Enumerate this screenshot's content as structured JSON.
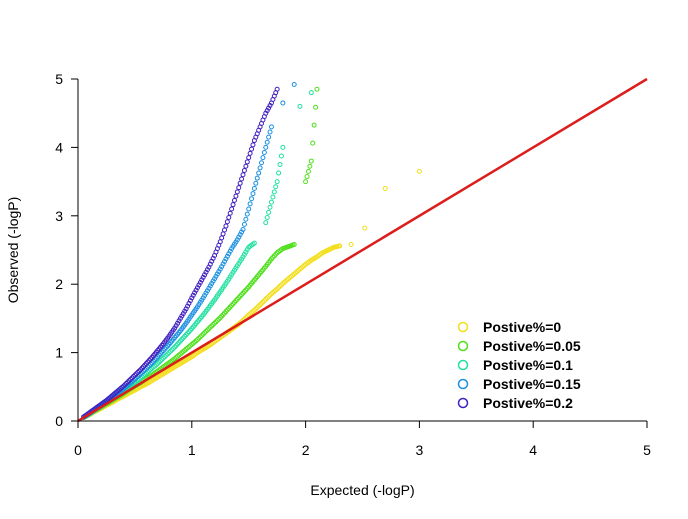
{
  "chart_data": {
    "type": "scatter",
    "title": "",
    "xlabel": "Expected (-logP)",
    "ylabel": "Observed (-logP)",
    "xlim": [
      0,
      5
    ],
    "ylim": [
      0,
      5
    ],
    "x_ticks": [
      "0",
      "1",
      "2",
      "3",
      "4",
      "5"
    ],
    "y_ticks": [
      "0",
      "1",
      "2",
      "3",
      "4",
      "5"
    ],
    "grid": false,
    "legend_position": "bottom-right",
    "reference_line": {
      "from": [
        0,
        0
      ],
      "to": [
        5,
        5
      ],
      "color": "#dd1c1c"
    },
    "series": [
      {
        "name": "Postive%=0",
        "color": "#f2de1a",
        "points": [
          [
            0.05,
            0.05
          ],
          [
            0.1,
            0.09
          ],
          [
            0.15,
            0.14
          ],
          [
            0.2,
            0.18
          ],
          [
            0.25,
            0.23
          ],
          [
            0.3,
            0.27
          ],
          [
            0.35,
            0.32
          ],
          [
            0.4,
            0.36
          ],
          [
            0.45,
            0.41
          ],
          [
            0.5,
            0.45
          ],
          [
            0.55,
            0.5
          ],
          [
            0.6,
            0.54
          ],
          [
            0.65,
            0.59
          ],
          [
            0.7,
            0.64
          ],
          [
            0.75,
            0.69
          ],
          [
            0.8,
            0.74
          ],
          [
            0.85,
            0.79
          ],
          [
            0.9,
            0.84
          ],
          [
            0.95,
            0.89
          ],
          [
            1.0,
            0.94
          ],
          [
            1.05,
            1.0
          ],
          [
            1.1,
            1.05
          ],
          [
            1.15,
            1.1
          ],
          [
            1.2,
            1.16
          ],
          [
            1.25,
            1.22
          ],
          [
            1.3,
            1.28
          ],
          [
            1.35,
            1.34
          ],
          [
            1.4,
            1.4
          ],
          [
            1.45,
            1.47
          ],
          [
            1.5,
            1.55
          ],
          [
            1.55,
            1.62
          ],
          [
            1.6,
            1.7
          ],
          [
            1.65,
            1.78
          ],
          [
            1.7,
            1.86
          ],
          [
            1.75,
            1.93
          ],
          [
            1.8,
            2.01
          ],
          [
            1.85,
            2.08
          ],
          [
            1.9,
            2.15
          ],
          [
            1.95,
            2.22
          ],
          [
            2.0,
            2.29
          ],
          [
            2.05,
            2.35
          ],
          [
            2.1,
            2.4
          ],
          [
            2.15,
            2.46
          ],
          [
            2.2,
            2.5
          ],
          [
            2.25,
            2.54
          ],
          [
            2.3,
            2.56
          ],
          [
            2.4,
            2.58
          ],
          [
            2.52,
            2.82
          ],
          [
            2.7,
            3.4
          ],
          [
            3.0,
            3.65
          ]
        ]
      },
      {
        "name": "Postive%=0.05",
        "color": "#4fe01c",
        "points": [
          [
            0.05,
            0.05
          ],
          [
            0.1,
            0.1
          ],
          [
            0.15,
            0.15
          ],
          [
            0.2,
            0.2
          ],
          [
            0.25,
            0.25
          ],
          [
            0.3,
            0.3
          ],
          [
            0.35,
            0.35
          ],
          [
            0.4,
            0.4
          ],
          [
            0.45,
            0.46
          ],
          [
            0.5,
            0.51
          ],
          [
            0.55,
            0.56
          ],
          [
            0.6,
            0.62
          ],
          [
            0.65,
            0.67
          ],
          [
            0.7,
            0.73
          ],
          [
            0.75,
            0.79
          ],
          [
            0.8,
            0.85
          ],
          [
            0.85,
            0.91
          ],
          [
            0.9,
            0.98
          ],
          [
            0.95,
            1.05
          ],
          [
            1.0,
            1.12
          ],
          [
            1.05,
            1.19
          ],
          [
            1.1,
            1.27
          ],
          [
            1.15,
            1.35
          ],
          [
            1.2,
            1.43
          ],
          [
            1.25,
            1.51
          ],
          [
            1.3,
            1.6
          ],
          [
            1.35,
            1.69
          ],
          [
            1.4,
            1.78
          ],
          [
            1.45,
            1.87
          ],
          [
            1.5,
            1.96
          ],
          [
            1.55,
            2.06
          ],
          [
            1.6,
            2.16
          ],
          [
            1.65,
            2.26
          ],
          [
            1.7,
            2.37
          ],
          [
            1.75,
            2.46
          ],
          [
            1.8,
            2.52
          ],
          [
            1.85,
            2.55
          ],
          [
            1.9,
            2.58
          ],
          [
            2.0,
            3.5
          ],
          [
            2.05,
            3.8
          ],
          [
            2.1,
            4.85
          ]
        ]
      },
      {
        "name": "Postive%=0.1",
        "color": "#22e0a0",
        "points": [
          [
            0.05,
            0.05
          ],
          [
            0.1,
            0.1
          ],
          [
            0.15,
            0.16
          ],
          [
            0.2,
            0.21
          ],
          [
            0.25,
            0.27
          ],
          [
            0.3,
            0.32
          ],
          [
            0.35,
            0.38
          ],
          [
            0.4,
            0.44
          ],
          [
            0.45,
            0.5
          ],
          [
            0.5,
            0.56
          ],
          [
            0.55,
            0.63
          ],
          [
            0.6,
            0.7
          ],
          [
            0.65,
            0.77
          ],
          [
            0.7,
            0.84
          ],
          [
            0.75,
            0.92
          ],
          [
            0.8,
            1.0
          ],
          [
            0.85,
            1.08
          ],
          [
            0.9,
            1.17
          ],
          [
            0.95,
            1.26
          ],
          [
            1.0,
            1.35
          ],
          [
            1.05,
            1.45
          ],
          [
            1.1,
            1.55
          ],
          [
            1.15,
            1.66
          ],
          [
            1.2,
            1.77
          ],
          [
            1.25,
            1.89
          ],
          [
            1.3,
            2.01
          ],
          [
            1.35,
            2.14
          ],
          [
            1.4,
            2.27
          ],
          [
            1.45,
            2.4
          ],
          [
            1.5,
            2.54
          ],
          [
            1.55,
            2.6
          ],
          [
            1.65,
            2.9
          ],
          [
            1.7,
            3.2
          ],
          [
            1.75,
            3.5
          ],
          [
            1.8,
            4.0
          ],
          [
            1.95,
            4.6
          ],
          [
            2.05,
            4.8
          ]
        ]
      },
      {
        "name": "Postive%=0.15",
        "color": "#1a90e0",
        "points": [
          [
            0.05,
            0.06
          ],
          [
            0.1,
            0.11
          ],
          [
            0.15,
            0.17
          ],
          [
            0.2,
            0.22
          ],
          [
            0.25,
            0.28
          ],
          [
            0.3,
            0.34
          ],
          [
            0.35,
            0.41
          ],
          [
            0.4,
            0.47
          ],
          [
            0.45,
            0.54
          ],
          [
            0.5,
            0.61
          ],
          [
            0.55,
            0.69
          ],
          [
            0.6,
            0.77
          ],
          [
            0.65,
            0.85
          ],
          [
            0.7,
            0.94
          ],
          [
            0.75,
            1.03
          ],
          [
            0.8,
            1.12
          ],
          [
            0.85,
            1.22
          ],
          [
            0.9,
            1.32
          ],
          [
            0.95,
            1.43
          ],
          [
            1.0,
            1.55
          ],
          [
            1.05,
            1.67
          ],
          [
            1.1,
            1.8
          ],
          [
            1.15,
            1.94
          ],
          [
            1.2,
            2.08
          ],
          [
            1.25,
            2.22
          ],
          [
            1.3,
            2.37
          ],
          [
            1.35,
            2.52
          ],
          [
            1.4,
            2.65
          ],
          [
            1.45,
            2.8
          ],
          [
            1.5,
            3.1
          ],
          [
            1.55,
            3.4
          ],
          [
            1.6,
            3.7
          ],
          [
            1.65,
            4.0
          ],
          [
            1.7,
            4.3
          ],
          [
            1.8,
            4.65
          ],
          [
            1.9,
            4.92
          ]
        ]
      },
      {
        "name": "Postive%=0.2",
        "color": "#4020c0",
        "points": [
          [
            0.05,
            0.06
          ],
          [
            0.1,
            0.12
          ],
          [
            0.15,
            0.18
          ],
          [
            0.2,
            0.24
          ],
          [
            0.25,
            0.3
          ],
          [
            0.3,
            0.37
          ],
          [
            0.35,
            0.44
          ],
          [
            0.4,
            0.51
          ],
          [
            0.45,
            0.59
          ],
          [
            0.5,
            0.67
          ],
          [
            0.55,
            0.75
          ],
          [
            0.6,
            0.84
          ],
          [
            0.65,
            0.93
          ],
          [
            0.7,
            1.03
          ],
          [
            0.75,
            1.13
          ],
          [
            0.8,
            1.24
          ],
          [
            0.85,
            1.36
          ],
          [
            0.9,
            1.5
          ],
          [
            0.95,
            1.64
          ],
          [
            1.0,
            1.8
          ],
          [
            1.05,
            1.95
          ],
          [
            1.1,
            2.1
          ],
          [
            1.15,
            2.25
          ],
          [
            1.2,
            2.42
          ],
          [
            1.25,
            2.62
          ],
          [
            1.3,
            2.85
          ],
          [
            1.35,
            3.1
          ],
          [
            1.4,
            3.35
          ],
          [
            1.45,
            3.6
          ],
          [
            1.5,
            3.85
          ],
          [
            1.55,
            4.1
          ],
          [
            1.6,
            4.3
          ],
          [
            1.65,
            4.5
          ],
          [
            1.7,
            4.65
          ],
          [
            1.75,
            4.85
          ]
        ]
      }
    ]
  }
}
